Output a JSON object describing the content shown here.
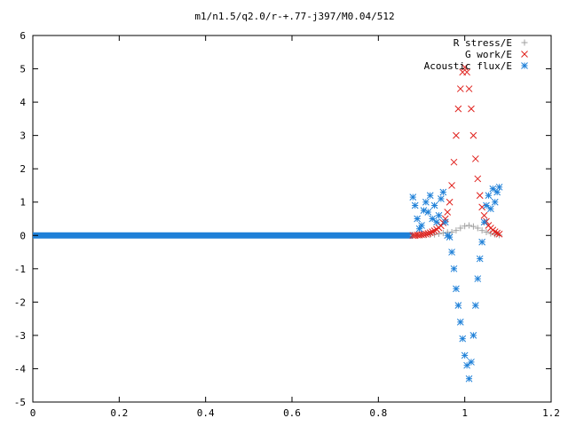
{
  "chart_data": {
    "type": "scatter",
    "title": "m1/n1.5/q2.0/r-+.77-j397/M0.04/512",
    "xlabel": "",
    "ylabel": "",
    "xlim": [
      0,
      1.2
    ],
    "ylim": [
      -5,
      6
    ],
    "xticks": [
      0,
      0.2,
      0.4,
      0.6,
      0.8,
      1,
      1.2
    ],
    "xtick_labels": [
      "0",
      "0.2",
      "0.4",
      "0.6",
      "0.8",
      "1",
      "1.2"
    ],
    "yticks": [
      -5,
      -4,
      -3,
      -2,
      -1,
      0,
      1,
      2,
      3,
      4,
      5,
      6
    ],
    "ytick_labels": [
      "-5",
      "-4",
      "-3",
      "-2",
      "-1",
      "0",
      "1",
      "2",
      "3",
      "4",
      "5",
      "6"
    ],
    "grid": false,
    "legend_position": "top-right",
    "series": [
      {
        "name": "R stress/E",
        "marker": "plus",
        "color": "#a0a0a0",
        "x": [
          0.88,
          0.89,
          0.9,
          0.91,
          0.92,
          0.93,
          0.94,
          0.95,
          0.96,
          0.97,
          0.98,
          0.99,
          1.0,
          1.01,
          1.02,
          1.03,
          1.04,
          1.05,
          1.06,
          1.07,
          1.08
        ],
        "y": [
          0.0,
          0.0,
          0.01,
          0.01,
          0.02,
          0.03,
          0.05,
          0.07,
          0.09,
          0.1,
          0.15,
          0.22,
          0.28,
          0.3,
          0.27,
          0.22,
          0.15,
          0.1,
          0.06,
          0.03,
          0.01
        ]
      },
      {
        "name": "G work/E",
        "marker": "cross",
        "color": "#e0201c",
        "x": [
          0.88,
          0.885,
          0.89,
          0.895,
          0.9,
          0.905,
          0.91,
          0.915,
          0.92,
          0.925,
          0.93,
          0.935,
          0.94,
          0.945,
          0.95,
          0.955,
          0.96,
          0.965,
          0.97,
          0.975,
          0.98,
          0.985,
          0.99,
          0.995,
          1.0,
          1.005,
          1.01,
          1.015,
          1.02,
          1.025,
          1.03,
          1.035,
          1.04,
          1.045,
          1.05,
          1.055,
          1.06,
          1.065,
          1.07,
          1.075,
          1.08
        ],
        "y": [
          0.0,
          0.0,
          0.01,
          0.01,
          0.02,
          0.03,
          0.04,
          0.06,
          0.08,
          0.11,
          0.14,
          0.18,
          0.23,
          0.29,
          0.38,
          0.5,
          0.7,
          1.0,
          1.5,
          2.2,
          3.0,
          3.8,
          4.4,
          4.9,
          5.05,
          4.9,
          4.4,
          3.8,
          3.0,
          2.3,
          1.7,
          1.2,
          0.85,
          0.6,
          0.42,
          0.3,
          0.22,
          0.16,
          0.11,
          0.07,
          0.04
        ]
      },
      {
        "name": "Acoustic flux/E",
        "marker": "star",
        "color": "#1f80d8",
        "x": [
          0.88,
          0.885,
          0.89,
          0.895,
          0.9,
          0.905,
          0.91,
          0.915,
          0.92,
          0.925,
          0.93,
          0.935,
          0.94,
          0.945,
          0.95,
          0.955,
          0.96,
          0.965,
          0.97,
          0.975,
          0.98,
          0.985,
          0.99,
          0.995,
          1.0,
          1.005,
          1.01,
          1.015,
          1.02,
          1.025,
          1.03,
          1.035,
          1.04,
          1.045,
          1.05,
          1.055,
          1.06,
          1.065,
          1.07,
          1.075,
          1.08
        ],
        "y": [
          1.15,
          0.9,
          0.5,
          0.2,
          0.3,
          0.75,
          1.0,
          0.7,
          1.2,
          0.5,
          0.9,
          0.4,
          0.6,
          1.1,
          1.3,
          0.4,
          0.0,
          -0.05,
          -0.5,
          -1.0,
          -1.6,
          -2.1,
          -2.6,
          -3.1,
          -3.6,
          -3.9,
          -4.3,
          -3.8,
          -3.0,
          -2.1,
          -1.3,
          -0.7,
          -0.2,
          0.4,
          0.9,
          1.2,
          0.8,
          1.4,
          1.0,
          1.3,
          1.45
        ]
      }
    ]
  }
}
